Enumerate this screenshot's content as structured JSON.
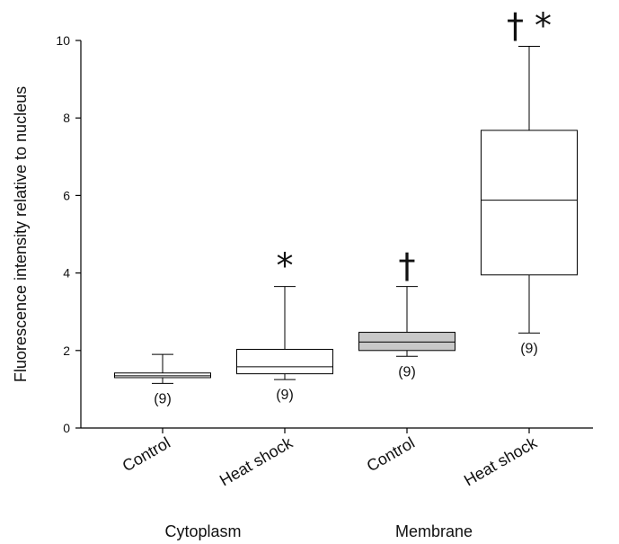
{
  "chart_data": {
    "type": "box",
    "ylabel": "Fluorescence intensity relative to nucleus",
    "xlabel": "",
    "ylim": [
      0,
      10
    ],
    "yticks": [
      0,
      2,
      4,
      6,
      8,
      10
    ],
    "grid": false,
    "groups": [
      "Cytoplasm",
      "Membrane"
    ],
    "categories": [
      "Control",
      "Heat shock",
      "Control",
      "Heat shock"
    ],
    "boxes": [
      {
        "category": "Control",
        "group": "Cytoplasm",
        "min": 1.15,
        "q1": 1.3,
        "median": 1.35,
        "q3": 1.42,
        "max": 1.9,
        "n_label": "(9)",
        "marker": "",
        "fill": "#ffffff"
      },
      {
        "category": "Heat shock",
        "group": "Cytoplasm",
        "min": 1.25,
        "q1": 1.4,
        "median": 1.58,
        "q3": 2.03,
        "max": 3.65,
        "n_label": "(9)",
        "marker": "*",
        "fill": "#ffffff"
      },
      {
        "category": "Control",
        "group": "Membrane",
        "min": 1.85,
        "q1": 2.0,
        "median": 2.22,
        "q3": 2.47,
        "max": 3.65,
        "n_label": "(9)",
        "marker": "†",
        "fill": "#c8c8c8"
      },
      {
        "category": "Heat shock",
        "group": "Membrane",
        "min": 2.45,
        "q1": 3.95,
        "median": 5.88,
        "q3": 7.68,
        "max": 9.85,
        "n_label": "(9)",
        "marker": "† *",
        "fill": "#ffffff"
      }
    ]
  }
}
